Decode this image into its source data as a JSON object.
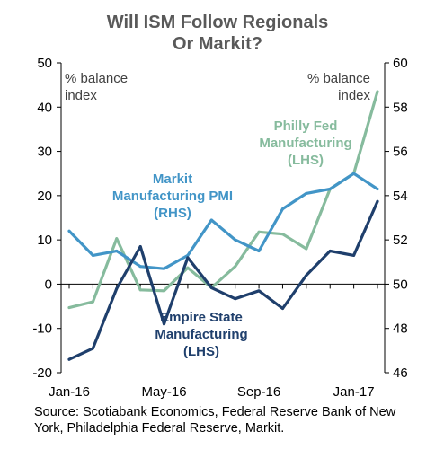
{
  "chart_data": {
    "type": "line",
    "title_lines": [
      "Will ISM Follow Regionals",
      "Or Markit?"
    ],
    "x": [
      "Jan-16",
      "Feb-16",
      "Mar-16",
      "Apr-16",
      "May-16",
      "Jun-16",
      "Jul-16",
      "Aug-16",
      "Sep-16",
      "Oct-16",
      "Nov-16",
      "Dec-16",
      "Jan-17",
      "Feb-17"
    ],
    "x_tick_labels": [
      {
        "index": 0,
        "label": "Jan-16"
      },
      {
        "index": 4,
        "label": "May-16"
      },
      {
        "index": 8,
        "label": "Sep-16"
      },
      {
        "index": 12,
        "label": "Jan-17"
      }
    ],
    "left_axis": {
      "unit_lines": [
        "% balance",
        "index"
      ],
      "ylim": [
        -20,
        50
      ],
      "ticks": [
        -20,
        -10,
        0,
        10,
        20,
        30,
        40,
        50
      ]
    },
    "right_axis": {
      "unit_lines": [
        "% balance",
        "index"
      ],
      "ylim": [
        46,
        60
      ],
      "ticks": [
        46,
        48,
        50,
        52,
        54,
        56,
        58,
        60
      ]
    },
    "series": [
      {
        "label_lines": [
          "Philly Fed",
          "Manufacturing",
          "(LHS)"
        ],
        "axis": "left",
        "color": "#86BB9D",
        "values": [
          -5.3,
          -4.0,
          10.3,
          -1.3,
          -1.5,
          3.7,
          -0.8,
          4.0,
          11.8,
          11.3,
          8.0,
          21.5,
          25.0,
          43.5
        ]
      },
      {
        "label_lines": [
          "Markit",
          "Manufacturing PMI",
          "(RHS)"
        ],
        "axis": "right",
        "color": "#4295C7",
        "values": [
          52.4,
          51.3,
          51.5,
          50.8,
          50.7,
          51.3,
          52.9,
          52.0,
          51.5,
          53.4,
          54.1,
          54.3,
          55.0,
          54.3
        ]
      },
      {
        "label_lines": [
          "Empire State",
          "Manufacturing",
          "(LHS)"
        ],
        "axis": "left",
        "color": "#1F3F6C",
        "values": [
          -17.0,
          -14.5,
          -1.0,
          8.5,
          -9.0,
          6.0,
          -0.8,
          -3.3,
          -1.5,
          -5.5,
          2.0,
          7.5,
          6.5,
          18.7
        ]
      }
    ]
  },
  "source_text": "Source: Scotiabank Economics, Federal Reserve Bank of New York, Philadelphia Federal Reserve, Markit."
}
